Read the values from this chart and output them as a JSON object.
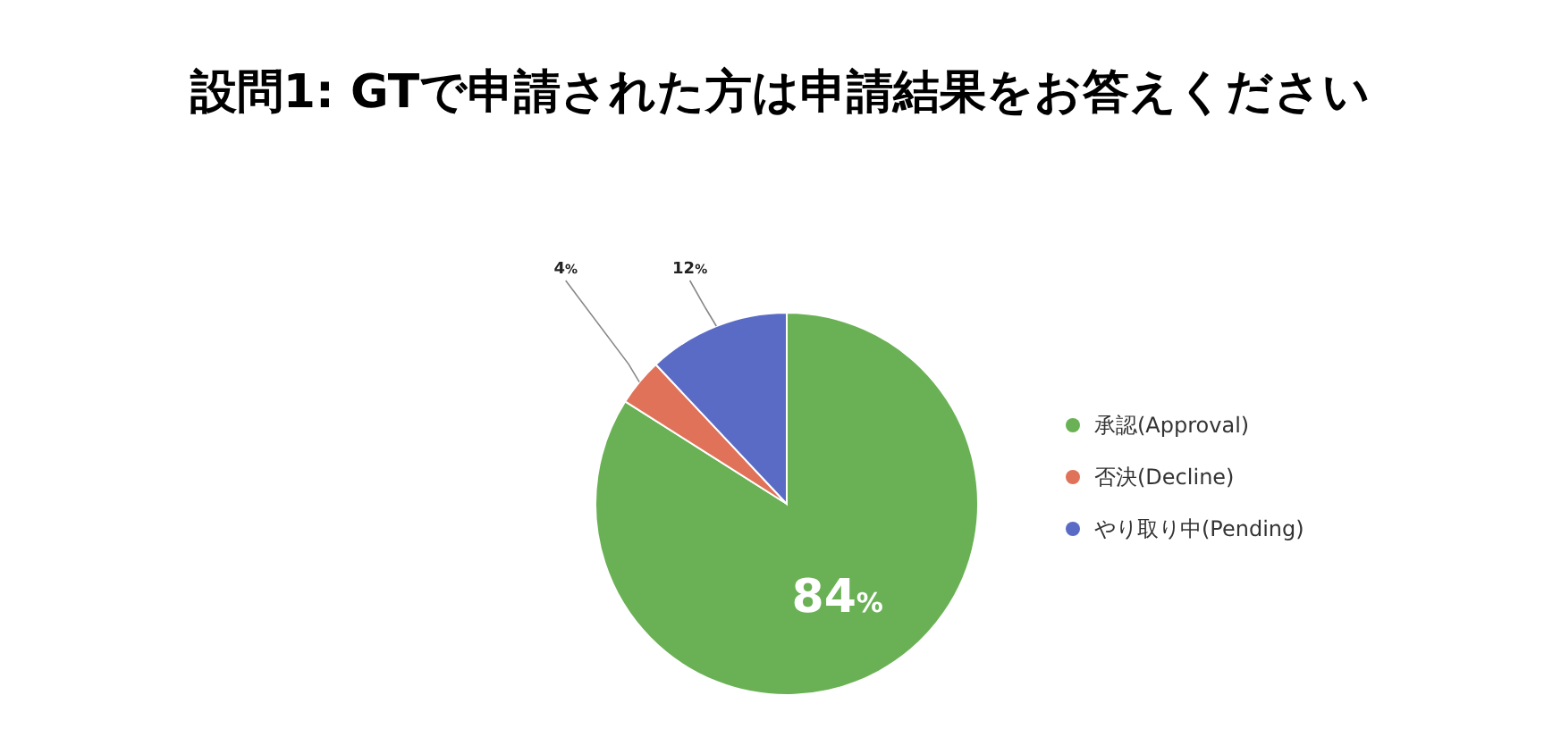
{
  "chart_data": {
    "type": "pie",
    "title": "設問1: GTで申請された方は申請結果をお答えください",
    "categories": [
      "承認(Approval)",
      "否決(Decline)",
      "やり取り中(Pending)"
    ],
    "values": [
      84,
      4,
      12
    ],
    "colors": [
      "#6ab155",
      "#e0725a",
      "#5a6bc6"
    ],
    "value_labels": [
      "84%",
      "4%",
      "12%"
    ],
    "legend": "right"
  }
}
